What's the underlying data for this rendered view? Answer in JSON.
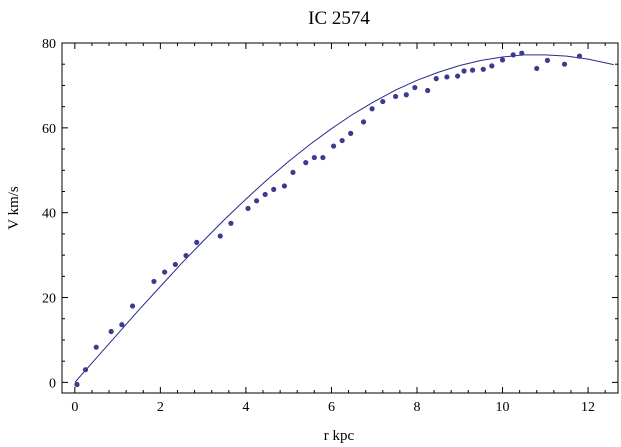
{
  "chart_data": {
    "type": "scatter",
    "title": "IC 2574",
    "xlabel": "r kpc",
    "ylabel": "V km/s",
    "xlim": [
      -0.3,
      12.7
    ],
    "ylim": [
      -2.5,
      80
    ],
    "x_ticks": [
      0,
      2,
      4,
      6,
      8,
      10,
      12
    ],
    "y_ticks": [
      0,
      20,
      40,
      60,
      80
    ],
    "grid": false,
    "colors": {
      "points": "#3d3a8f",
      "curve": "#2b2a8c",
      "frame": "#000000"
    },
    "series": [
      {
        "type": "scatter",
        "points": [
          [
            0.05,
            -0.5
          ],
          [
            0.25,
            3.0
          ],
          [
            0.5,
            8.3
          ],
          [
            0.85,
            12.0
          ],
          [
            1.1,
            13.6
          ],
          [
            1.35,
            18.0
          ],
          [
            1.85,
            23.8
          ],
          [
            2.1,
            26.0
          ],
          [
            2.35,
            27.8
          ],
          [
            2.6,
            29.9
          ],
          [
            2.85,
            33.0
          ],
          [
            3.4,
            34.5
          ],
          [
            3.65,
            37.5
          ],
          [
            4.05,
            41.0
          ],
          [
            4.25,
            42.8
          ],
          [
            4.45,
            44.3
          ],
          [
            4.65,
            45.5
          ],
          [
            4.9,
            46.3
          ],
          [
            5.1,
            49.5
          ],
          [
            5.4,
            51.8
          ],
          [
            5.6,
            53.0
          ],
          [
            5.8,
            53.0
          ],
          [
            6.05,
            55.7
          ],
          [
            6.25,
            57.0
          ],
          [
            6.45,
            58.7
          ],
          [
            6.75,
            61.4
          ],
          [
            6.95,
            64.5
          ],
          [
            7.2,
            66.2
          ],
          [
            7.5,
            67.4
          ],
          [
            7.75,
            67.8
          ],
          [
            7.95,
            69.5
          ],
          [
            8.25,
            68.8
          ],
          [
            8.45,
            71.6
          ],
          [
            8.7,
            72.0
          ],
          [
            8.95,
            72.2
          ],
          [
            9.1,
            73.4
          ],
          [
            9.3,
            73.6
          ],
          [
            9.55,
            73.8
          ],
          [
            9.75,
            74.6
          ],
          [
            10.0,
            76.0
          ],
          [
            10.25,
            77.2
          ],
          [
            10.45,
            77.6
          ],
          [
            10.8,
            74.0
          ],
          [
            11.05,
            75.9
          ],
          [
            11.45,
            75.0
          ],
          [
            11.8,
            76.9
          ]
        ]
      },
      {
        "type": "line",
        "x": [
          0,
          0.5,
          1,
          1.5,
          2,
          2.5,
          3,
          3.5,
          4,
          4.5,
          5,
          5.5,
          6,
          6.5,
          7,
          7.5,
          8,
          8.5,
          9,
          9.5,
          10,
          10.5,
          11,
          11.5,
          12,
          12.6
        ],
        "y": [
          0,
          5.7,
          11.4,
          17.1,
          22.6,
          28.1,
          33.3,
          38.4,
          43.2,
          47.8,
          52.1,
          56.1,
          59.8,
          63.2,
          66.2,
          68.9,
          71.2,
          73.1,
          74.7,
          75.9,
          76.7,
          77.2,
          77.2,
          76.9,
          76.2,
          74.9
        ]
      }
    ]
  }
}
